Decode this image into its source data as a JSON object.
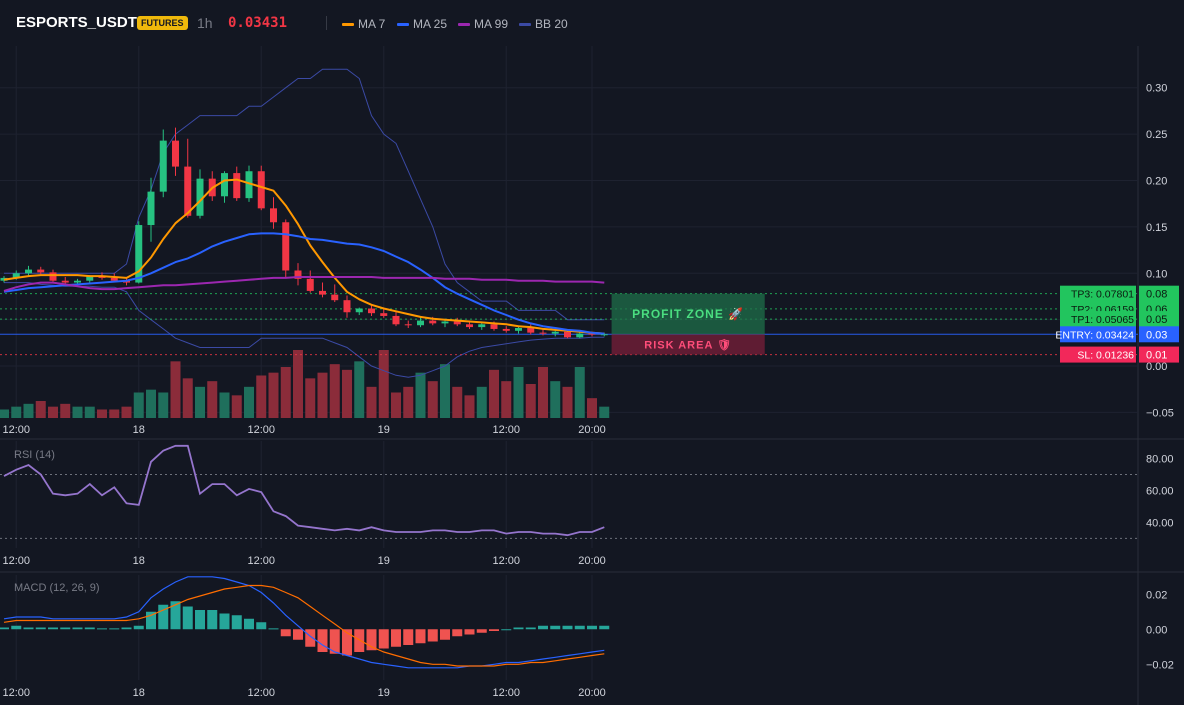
{
  "header": {
    "symbol": "ESPORTS_USDT",
    "badge": "FUTURES",
    "timeframe": "1h",
    "last_price": "0.03431",
    "legend": [
      {
        "label": "MA 7",
        "color": "#ff9800"
      },
      {
        "label": "MA 25",
        "color": "#2962ff"
      },
      {
        "label": "MA 99",
        "color": "#9c27b0"
      },
      {
        "label": "BB 20",
        "color": "#3b4aa5"
      }
    ]
  },
  "colors": {
    "up": "#26c281",
    "down": "#f23645",
    "bg": "#131722",
    "grid": "#1e2230",
    "text": "#d1d4dc",
    "muted": "#787b86"
  },
  "time_axis_labels": [
    "12:00",
    "18",
    "12:00",
    "19",
    "12:00",
    "20:00"
  ],
  "time_axis_positions": [
    1,
    11,
    21,
    31,
    41,
    48
  ],
  "price_axis": {
    "ticks": [
      0.3,
      0.25,
      0.2,
      0.15,
      0.1,
      0.05,
      0.0,
      -0.05
    ],
    "labels": [
      "0.30",
      "0.25",
      "0.20",
      "0.15",
      "0.10",
      "0.05",
      "0.00",
      "−0.05"
    ],
    "range": [
      -0.056,
      0.345
    ]
  },
  "trade_levels": [
    {
      "name": "tp3",
      "label": "TP3: 0.07801",
      "axis": "0.08",
      "value": 0.07801,
      "color": "#22c55e"
    },
    {
      "name": "tp2",
      "label": "TP2: 0.06159",
      "axis": "0.06",
      "value": 0.06159,
      "color": "#22c55e"
    },
    {
      "name": "tp1",
      "label": "TP1: 0.05065",
      "axis": "0.05",
      "value": 0.05065,
      "color": "#22c55e"
    },
    {
      "name": "entry",
      "label": "ENTRY: 0.03424",
      "axis": "0.03",
      "value": 0.03424,
      "color": "#2962ff"
    },
    {
      "name": "sl",
      "label": "SL: 0.01236",
      "axis": "0.01",
      "value": 0.01236,
      "color": "#f23645"
    }
  ],
  "zones": {
    "profit_label": "PROFIT ZONE 🚀",
    "risk_label": "RISK AREA 🛡"
  },
  "chart_data": [
    {
      "type": "candlestick",
      "title": "ESPORTS_USDT 1h",
      "x_index_range": [
        0,
        49
      ],
      "candles": [
        [
          0.092,
          0.097,
          0.09,
          0.095
        ],
        [
          0.095,
          0.103,
          0.093,
          0.1
        ],
        [
          0.1,
          0.108,
          0.097,
          0.104
        ],
        [
          0.104,
          0.107,
          0.099,
          0.101
        ],
        [
          0.101,
          0.104,
          0.091,
          0.092
        ],
        [
          0.092,
          0.096,
          0.088,
          0.09
        ],
        [
          0.09,
          0.094,
          0.087,
          0.092
        ],
        [
          0.092,
          0.098,
          0.09,
          0.097
        ],
        [
          0.097,
          0.101,
          0.093,
          0.095
        ],
        [
          0.095,
          0.1,
          0.091,
          0.092
        ],
        [
          0.092,
          0.096,
          0.087,
          0.09
        ],
        [
          0.09,
          0.156,
          0.089,
          0.152
        ],
        [
          0.152,
          0.203,
          0.134,
          0.188
        ],
        [
          0.188,
          0.255,
          0.182,
          0.243
        ],
        [
          0.243,
          0.257,
          0.205,
          0.215
        ],
        [
          0.215,
          0.245,
          0.16,
          0.162
        ],
        [
          0.162,
          0.212,
          0.159,
          0.202
        ],
        [
          0.202,
          0.21,
          0.178,
          0.183
        ],
        [
          0.183,
          0.21,
          0.176,
          0.208
        ],
        [
          0.208,
          0.215,
          0.178,
          0.181
        ],
        [
          0.181,
          0.216,
          0.177,
          0.21
        ],
        [
          0.21,
          0.216,
          0.168,
          0.17
        ],
        [
          0.17,
          0.182,
          0.148,
          0.155
        ],
        [
          0.155,
          0.158,
          0.095,
          0.103
        ],
        [
          0.103,
          0.111,
          0.087,
          0.094
        ],
        [
          0.094,
          0.103,
          0.079,
          0.081
        ],
        [
          0.081,
          0.09,
          0.074,
          0.077
        ],
        [
          0.077,
          0.088,
          0.069,
          0.071
        ],
        [
          0.071,
          0.076,
          0.052,
          0.058
        ],
        [
          0.058,
          0.063,
          0.055,
          0.062
        ],
        [
          0.062,
          0.066,
          0.054,
          0.057
        ],
        [
          0.057,
          0.061,
          0.052,
          0.054
        ],
        [
          0.054,
          0.059,
          0.043,
          0.045
        ],
        [
          0.045,
          0.049,
          0.041,
          0.044
        ],
        [
          0.044,
          0.053,
          0.042,
          0.049
        ],
        [
          0.049,
          0.053,
          0.044,
          0.046
        ],
        [
          0.046,
          0.051,
          0.042,
          0.048
        ],
        [
          0.048,
          0.052,
          0.043,
          0.045
        ],
        [
          0.045,
          0.049,
          0.04,
          0.042
        ],
        [
          0.042,
          0.047,
          0.039,
          0.045
        ],
        [
          0.045,
          0.048,
          0.038,
          0.04
        ],
        [
          0.04,
          0.043,
          0.036,
          0.038
        ],
        [
          0.038,
          0.043,
          0.035,
          0.041
        ],
        [
          0.041,
          0.045,
          0.034,
          0.036
        ],
        [
          0.036,
          0.04,
          0.033,
          0.035
        ],
        [
          0.035,
          0.039,
          0.032,
          0.037
        ],
        [
          0.037,
          0.039,
          0.03,
          0.031
        ],
        [
          0.031,
          0.037,
          0.03,
          0.035
        ],
        [
          0.035,
          0.037,
          0.032,
          0.034
        ],
        [
          0.034,
          0.036,
          0.032,
          0.0343
        ]
      ],
      "candle_format": [
        "open",
        "high",
        "low",
        "close"
      ],
      "volume": [
        3,
        4,
        5,
        6,
        4,
        5,
        4,
        4,
        3,
        3,
        4,
        9,
        10,
        9,
        20,
        14,
        11,
        13,
        9,
        8,
        11,
        15,
        16,
        18,
        24,
        14,
        16,
        19,
        17,
        20,
        11,
        24,
        9,
        11,
        16,
        13,
        19,
        11,
        8,
        11,
        17,
        13,
        18,
        12,
        18,
        13,
        11,
        18,
        7,
        4
      ],
      "ma": [
        {
          "name": "MA 7",
          "color": "#ff9800",
          "values": [
            0.093,
            0.095,
            0.097,
            0.098,
            0.098,
            0.098,
            0.098,
            0.097,
            0.097,
            0.096,
            0.095,
            0.102,
            0.117,
            0.137,
            0.154,
            0.165,
            0.178,
            0.192,
            0.2,
            0.201,
            0.197,
            0.193,
            0.189,
            0.173,
            0.153,
            0.13,
            0.112,
            0.095,
            0.08,
            0.072,
            0.066,
            0.062,
            0.059,
            0.056,
            0.053,
            0.051,
            0.05,
            0.049,
            0.048,
            0.047,
            0.046,
            0.045,
            0.043,
            0.042,
            0.04,
            0.039,
            0.038,
            0.037,
            0.036,
            0.035
          ]
        },
        {
          "name": "MA 25",
          "color": "#2962ff",
          "values": [
            0.08,
            0.082,
            0.084,
            0.085,
            0.086,
            0.087,
            0.088,
            0.089,
            0.09,
            0.091,
            0.092,
            0.095,
            0.1,
            0.106,
            0.112,
            0.116,
            0.122,
            0.129,
            0.134,
            0.138,
            0.142,
            0.143,
            0.143,
            0.142,
            0.14,
            0.137,
            0.136,
            0.134,
            0.132,
            0.131,
            0.128,
            0.124,
            0.118,
            0.112,
            0.104,
            0.095,
            0.085,
            0.078,
            0.072,
            0.066,
            0.06,
            0.055,
            0.05,
            0.046,
            0.043,
            0.041,
            0.039,
            0.038,
            0.036,
            0.035
          ]
        },
        {
          "name": "MA 99",
          "color": "#9c27b0",
          "values": [
            0.081,
            0.085,
            0.088,
            0.09,
            0.09,
            0.088,
            0.086,
            0.084,
            0.083,
            0.083,
            0.084,
            0.085,
            0.086,
            0.087,
            0.087,
            0.088,
            0.089,
            0.09,
            0.091,
            0.092,
            0.093,
            0.094,
            0.095,
            0.095,
            0.096,
            0.096,
            0.096,
            0.096,
            0.096,
            0.096,
            0.096,
            0.095,
            0.095,
            0.095,
            0.095,
            0.095,
            0.094,
            0.094,
            0.094,
            0.093,
            0.093,
            0.093,
            0.092,
            0.092,
            0.092,
            0.091,
            0.091,
            0.091,
            0.091,
            0.09
          ]
        }
      ],
      "bb": {
        "name": "BB 20",
        "color": "#3b4aa5",
        "upper": [
          0.1,
          0.1,
          0.1,
          0.1,
          0.1,
          0.1,
          0.1,
          0.1,
          0.1,
          0.1,
          0.11,
          0.16,
          0.19,
          0.23,
          0.25,
          0.26,
          0.27,
          0.27,
          0.27,
          0.27,
          0.28,
          0.28,
          0.29,
          0.3,
          0.31,
          0.31,
          0.32,
          0.32,
          0.32,
          0.31,
          0.27,
          0.25,
          0.24,
          0.21,
          0.18,
          0.15,
          0.11,
          0.09,
          0.08,
          0.07,
          0.07,
          0.07,
          0.06,
          0.06,
          0.06,
          0.06,
          0.05,
          0.05,
          0.05,
          0.05
        ],
        "lower": [
          0.09,
          0.09,
          0.09,
          0.088,
          0.087,
          0.086,
          0.086,
          0.086,
          0.085,
          0.085,
          0.08,
          0.06,
          0.05,
          0.04,
          0.03,
          0.025,
          0.02,
          0.02,
          0.02,
          0.02,
          0.02,
          0.03,
          0.03,
          0.03,
          0.03,
          0.03,
          0.03,
          0.025,
          0.02,
          0.01,
          0.0,
          -0.005,
          -0.01,
          -0.012,
          -0.01,
          -0.005,
          0.0,
          0.01,
          0.016,
          0.02,
          0.022,
          0.024,
          0.026,
          0.028,
          0.029,
          0.03,
          0.03,
          0.03,
          0.031,
          0.031
        ]
      }
    },
    {
      "type": "line",
      "title": "RSI (14)",
      "ylim": [
        24,
        91
      ],
      "y_ticks": [
        80.0,
        60.0,
        40.0
      ],
      "y_tick_labels": [
        "80.00",
        "60.00",
        "40.00"
      ],
      "guides": [
        70,
        30
      ],
      "color": "#9575cd",
      "values": [
        69,
        73,
        76,
        70,
        58,
        57,
        58,
        64,
        57,
        62,
        52,
        51,
        78,
        85,
        88,
        88,
        58,
        64,
        64,
        57,
        61,
        59,
        47,
        44,
        38,
        37,
        36,
        35,
        36,
        35,
        37,
        35,
        34,
        34,
        34,
        35,
        35,
        34,
        34,
        35,
        35,
        33,
        34,
        34,
        33,
        33,
        32,
        34,
        34,
        37
      ]
    },
    {
      "type": "histogram+line",
      "title": "MACD (12, 26, 9)",
      "ylim": [
        -0.029,
        0.031
      ],
      "y_ticks": [
        0.02,
        0.0,
        -0.02
      ],
      "y_tick_labels": [
        "0.02",
        "0.00",
        "−0.02"
      ],
      "histogram": [
        0.001,
        0.002,
        0.001,
        0.001,
        0.001,
        0.001,
        0.001,
        0.001,
        0.0005,
        0.0005,
        0.001,
        0.002,
        0.01,
        0.014,
        0.016,
        0.013,
        0.011,
        0.011,
        0.009,
        0.008,
        0.006,
        0.004,
        0.0005,
        -0.004,
        -0.006,
        -0.01,
        -0.013,
        -0.014,
        -0.015,
        -0.013,
        -0.012,
        -0.011,
        -0.01,
        -0.009,
        -0.008,
        -0.007,
        -0.006,
        -0.004,
        -0.003,
        -0.002,
        -0.001,
        0.0,
        0.001,
        0.001,
        0.002,
        0.002,
        0.002,
        0.002,
        0.002,
        0.002
      ],
      "macd": [
        0.006,
        0.007,
        0.007,
        0.007,
        0.006,
        0.006,
        0.006,
        0.006,
        0.006,
        0.006,
        0.007,
        0.01,
        0.018,
        0.023,
        0.027,
        0.03,
        0.03,
        0.03,
        0.029,
        0.027,
        0.025,
        0.021,
        0.015,
        0.008,
        0.002,
        -0.004,
        -0.009,
        -0.013,
        -0.015,
        -0.017,
        -0.019,
        -0.02,
        -0.021,
        -0.022,
        -0.022,
        -0.022,
        -0.022,
        -0.022,
        -0.021,
        -0.021,
        -0.02,
        -0.019,
        -0.019,
        -0.018,
        -0.017,
        -0.016,
        -0.015,
        -0.014,
        -0.013,
        -0.012
      ],
      "signal": [
        0.004,
        0.005,
        0.005,
        0.005,
        0.005,
        0.005,
        0.005,
        0.005,
        0.005,
        0.005,
        0.005,
        0.006,
        0.008,
        0.011,
        0.014,
        0.017,
        0.019,
        0.021,
        0.023,
        0.024,
        0.025,
        0.025,
        0.024,
        0.021,
        0.018,
        0.013,
        0.008,
        0.003,
        -0.002,
        -0.006,
        -0.01,
        -0.013,
        -0.015,
        -0.017,
        -0.019,
        -0.02,
        -0.02,
        -0.021,
        -0.021,
        -0.021,
        -0.021,
        -0.02,
        -0.02,
        -0.019,
        -0.019,
        -0.018,
        -0.017,
        -0.016,
        -0.015,
        -0.014
      ],
      "series_colors": {
        "macd": "#2962ff",
        "signal": "#ff6d00",
        "hist_pos": "#26a69a",
        "hist_neg": "#ef5350"
      }
    }
  ]
}
